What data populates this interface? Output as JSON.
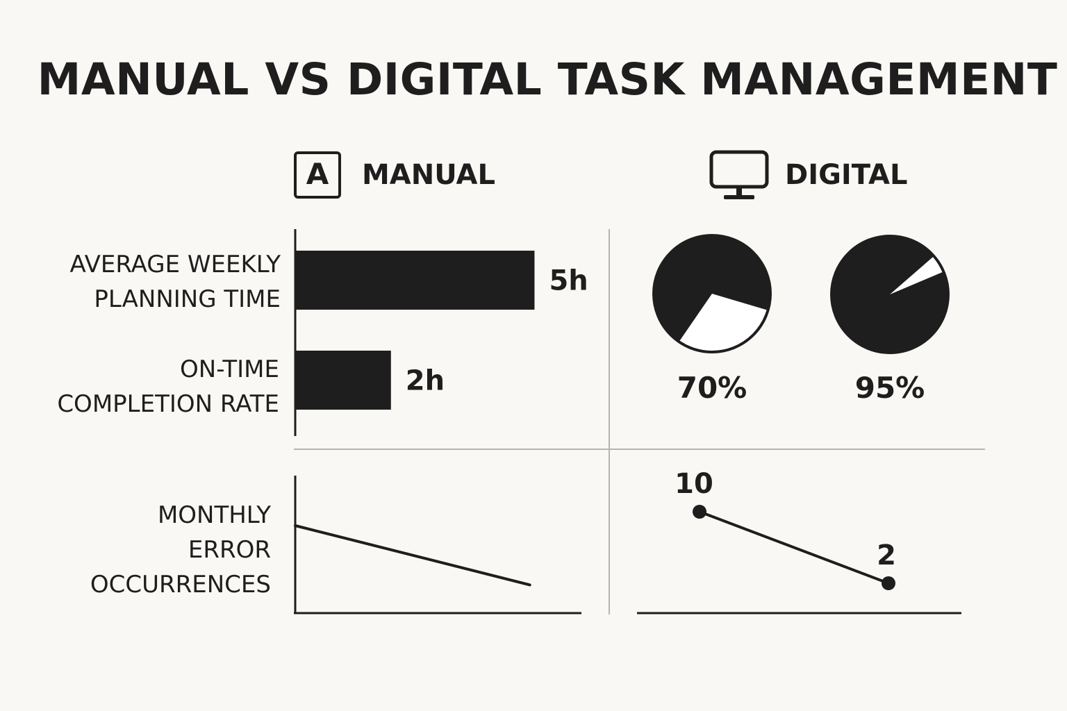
{
  "title": "MANUAL VS DIGITAL TASK MANAGEMENT",
  "columns": {
    "manual": {
      "label": "MANUAL",
      "icon": "letter-a-box-icon",
      "icon_text": "A"
    },
    "digital": {
      "label": "DIGITAL",
      "icon": "monitor-icon"
    }
  },
  "row_labels": {
    "planning": "AVERAGE WEEKLY\nPLANNING TIME",
    "ontime": "ON-TIME\nCOMPLETION RATE",
    "errors": "MONTHLY\nERROR\nOCCURRENCES"
  },
  "colors": {
    "ink": "#1e1e1e",
    "background": "#faf8f4",
    "divider": "#b4b4b4"
  },
  "chart_data": [
    {
      "type": "bar",
      "orientation": "horizontal",
      "categories": [
        "AVERAGE WEEKLY PLANNING TIME",
        "ON-TIME COMPLETION RATE"
      ],
      "values": [
        5,
        2
      ],
      "data_labels": [
        "5h",
        "2h"
      ],
      "xlim": [
        0,
        5.4
      ]
    },
    {
      "type": "pie",
      "slices": [
        {
          "value": 70,
          "label": "70%"
        },
        {
          "value": 95,
          "label": "95%"
        }
      ]
    },
    {
      "type": "line",
      "series": [
        {
          "points": [
            {
              "x": 0,
              "y": 10
            },
            {
              "x": 1,
              "y": 2
            }
          ],
          "markers": false,
          "data_labels": []
        }
      ],
      "xlim": [
        0,
        1.22
      ],
      "ylim": [
        -1.8,
        10
      ]
    },
    {
      "type": "line",
      "series": [
        {
          "points": [
            {
              "x": 0,
              "y": 10
            },
            {
              "x": 1,
              "y": 2
            }
          ],
          "markers": true,
          "data_labels": [
            "10",
            "2"
          ]
        }
      ],
      "xlim": [
        0,
        1
      ],
      "ylim": [
        2,
        10
      ]
    }
  ]
}
